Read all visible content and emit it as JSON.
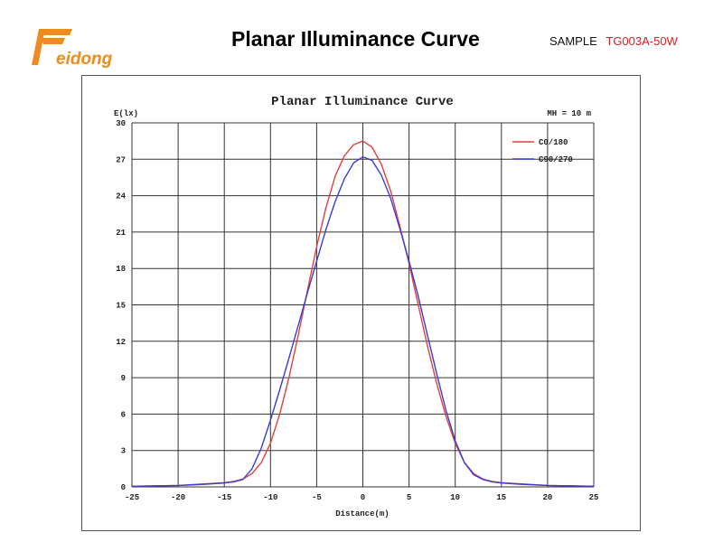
{
  "header": {
    "logo_text": "Feidong",
    "title": "Planar Illuminance Curve",
    "sample_label": "SAMPLE",
    "model": "TG003A-50W"
  },
  "colors": {
    "logo_orange": "#ef8a1e",
    "model_red": "#d42020",
    "series_c0": "#e04040",
    "series_c90": "#3b3bd6"
  },
  "chart_data": {
    "type": "line",
    "title": "Planar Illuminance Curve",
    "ylabel": "E(lx)",
    "xlabel": "Distance(m)",
    "annotation": "MH = 10 m",
    "xlim": [
      -25,
      25
    ],
    "ylim": [
      0,
      30
    ],
    "xticks": [
      -25,
      -20,
      -15,
      -10,
      -5,
      0,
      5,
      10,
      15,
      20,
      25
    ],
    "yticks": [
      0,
      3,
      6,
      9,
      12,
      15,
      18,
      21,
      24,
      27,
      30
    ],
    "grid": true,
    "legend_position": "top-right",
    "series": [
      {
        "name": "C0/180",
        "color": "#e04040",
        "points": [
          [
            -25,
            0.05
          ],
          [
            -20,
            0.12
          ],
          [
            -17,
            0.25
          ],
          [
            -15,
            0.35
          ],
          [
            -14,
            0.45
          ],
          [
            -13,
            0.65
          ],
          [
            -12,
            1.1
          ],
          [
            -11,
            2.0
          ],
          [
            -10,
            3.6
          ],
          [
            -9,
            6.0
          ],
          [
            -8,
            9.0
          ],
          [
            -7,
            12.5
          ],
          [
            -6,
            16.2
          ],
          [
            -5,
            19.8
          ],
          [
            -4,
            23.0
          ],
          [
            -3,
            25.6
          ],
          [
            -2,
            27.3
          ],
          [
            -1,
            28.2
          ],
          [
            0,
            28.5
          ],
          [
            1,
            28.0
          ],
          [
            2,
            26.6
          ],
          [
            3,
            24.4
          ],
          [
            4,
            21.5
          ],
          [
            5,
            18.4
          ],
          [
            6,
            15.0
          ],
          [
            7,
            11.6
          ],
          [
            8,
            8.5
          ],
          [
            9,
            5.8
          ],
          [
            10,
            3.6
          ],
          [
            11,
            2.0
          ],
          [
            12,
            1.1
          ],
          [
            13,
            0.65
          ],
          [
            14,
            0.45
          ],
          [
            15,
            0.35
          ],
          [
            17,
            0.25
          ],
          [
            20,
            0.12
          ],
          [
            25,
            0.05
          ]
        ]
      },
      {
        "name": "C90/270",
        "color": "#3b3bd6",
        "points": [
          [
            -25,
            0.05
          ],
          [
            -20,
            0.12
          ],
          [
            -17,
            0.22
          ],
          [
            -15,
            0.32
          ],
          [
            -14,
            0.42
          ],
          [
            -13,
            0.6
          ],
          [
            -12,
            1.5
          ],
          [
            -11,
            3.2
          ],
          [
            -10,
            5.5
          ],
          [
            -9,
            8.0
          ],
          [
            -8,
            10.6
          ],
          [
            -7,
            13.3
          ],
          [
            -6,
            16.0
          ],
          [
            -5,
            18.6
          ],
          [
            -4,
            21.2
          ],
          [
            -3,
            23.5
          ],
          [
            -2,
            25.4
          ],
          [
            -1,
            26.7
          ],
          [
            0,
            27.2
          ],
          [
            1,
            26.9
          ],
          [
            2,
            25.7
          ],
          [
            3,
            23.8
          ],
          [
            4,
            21.3
          ],
          [
            5,
            18.6
          ],
          [
            6,
            15.7
          ],
          [
            7,
            12.5
          ],
          [
            8,
            9.3
          ],
          [
            9,
            6.3
          ],
          [
            10,
            3.8
          ],
          [
            11,
            2.0
          ],
          [
            12,
            1.0
          ],
          [
            13,
            0.6
          ],
          [
            14,
            0.42
          ],
          [
            15,
            0.32
          ],
          [
            17,
            0.22
          ],
          [
            20,
            0.12
          ],
          [
            25,
            0.05
          ]
        ]
      }
    ]
  }
}
